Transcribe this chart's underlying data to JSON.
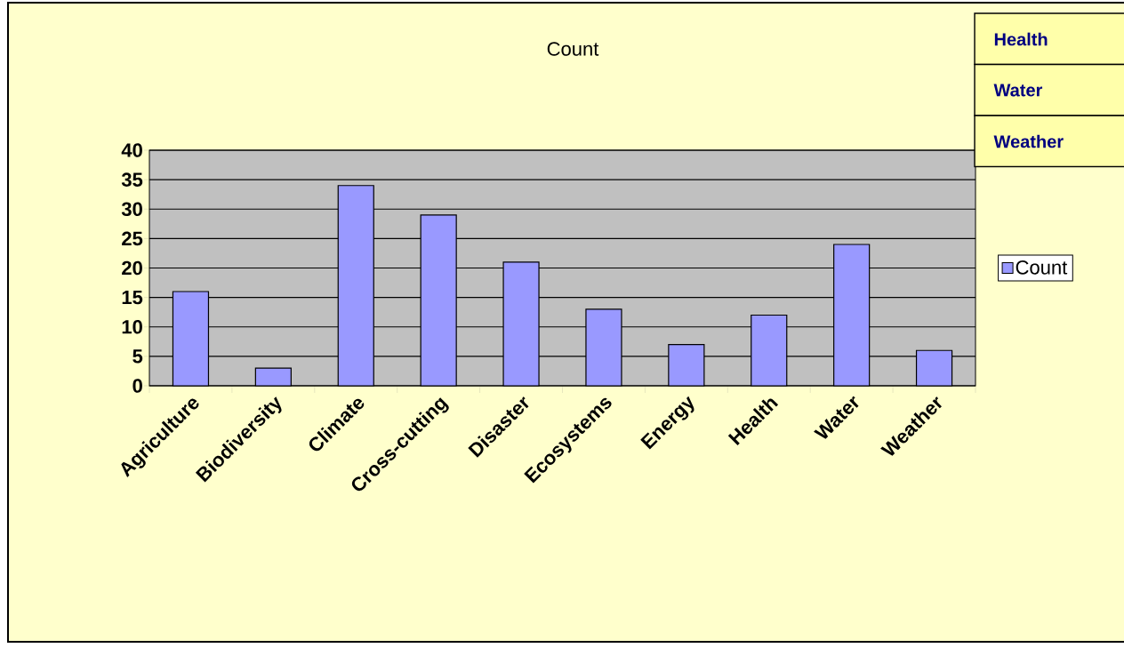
{
  "chart_data": {
    "type": "bar",
    "title": "Count",
    "categories": [
      "Agriculture",
      "Biodiversity",
      "Climate",
      "Cross-cutting",
      "Disaster",
      "Ecosystems",
      "Energy",
      "Health",
      "Water",
      "Weather"
    ],
    "series": [
      {
        "name": "Count",
        "color": "#9999ff",
        "values": [
          16,
          3,
          34,
          29,
          21,
          13,
          7,
          12,
          24,
          6
        ]
      }
    ],
    "ylim": [
      0,
      40
    ],
    "yticks": [
      0,
      5,
      10,
      15,
      20,
      25,
      30,
      35,
      40
    ],
    "grid": "y",
    "legend": "right",
    "annotations": [
      "Health",
      "Water",
      "Weather"
    ]
  }
}
